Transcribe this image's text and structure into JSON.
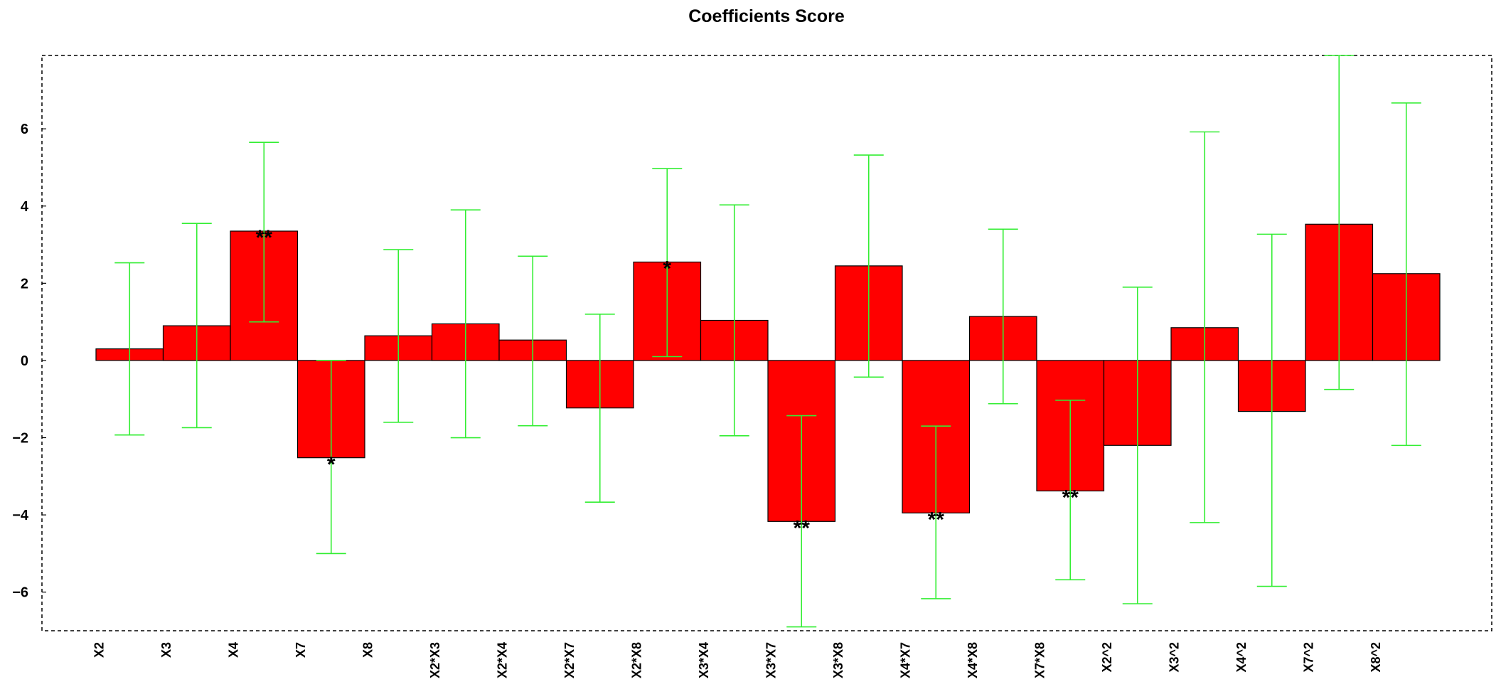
{
  "chart_data": {
    "type": "bar",
    "title": "Coefficients Score",
    "xlabel": "",
    "ylabel": "",
    "ylim": [
      -7,
      7.9
    ],
    "yticks": [
      -6,
      -4,
      -2,
      0,
      2,
      4,
      6
    ],
    "ytick_labels": [
      "−6",
      "−4",
      "−2",
      "0",
      "2",
      "4",
      "6"
    ],
    "grid": false,
    "legend": "none",
    "colors": {
      "bar": "#ff0000",
      "bar_edge": "#000000",
      "error_bar": "#33ee33",
      "frame": "#000000"
    },
    "categories": [
      "X2",
      "X3",
      "X4",
      "X7",
      "X8",
      "X2*X3",
      "X2*X4",
      "X2*X7",
      "X2*X8",
      "X3*X4",
      "X3*X7",
      "X3*X8",
      "X4*X7",
      "X4*X8",
      "X7*X8",
      "X2^2",
      "X3^2",
      "X4^2",
      "X7^2",
      "X8^2"
    ],
    "values": [
      0.3,
      0.9,
      3.35,
      -2.52,
      0.64,
      0.95,
      0.53,
      -1.23,
      2.55,
      1.04,
      -4.17,
      2.45,
      -3.95,
      1.14,
      -3.38,
      -2.2,
      0.85,
      -1.32,
      3.53,
      2.25
    ],
    "error_low": [
      -1.93,
      -1.74,
      1.0,
      -5.0,
      -1.6,
      -2.0,
      -1.69,
      -3.67,
      0.1,
      -1.95,
      -6.9,
      -0.43,
      -6.17,
      -1.12,
      -5.68,
      -6.3,
      -4.2,
      -5.85,
      -0.75,
      -2.2
    ],
    "error_high": [
      2.53,
      3.55,
      5.65,
      0.0,
      2.87,
      3.9,
      2.7,
      1.2,
      4.97,
      4.03,
      -1.43,
      5.32,
      -1.7,
      3.4,
      -1.03,
      1.9,
      5.92,
      3.27,
      7.9,
      6.67
    ],
    "significance": [
      "",
      "",
      "**",
      "*",
      "",
      "",
      "",
      "",
      "*",
      "",
      "**",
      "",
      "**",
      "",
      "**",
      "",
      "",
      "",
      "",
      ""
    ]
  }
}
